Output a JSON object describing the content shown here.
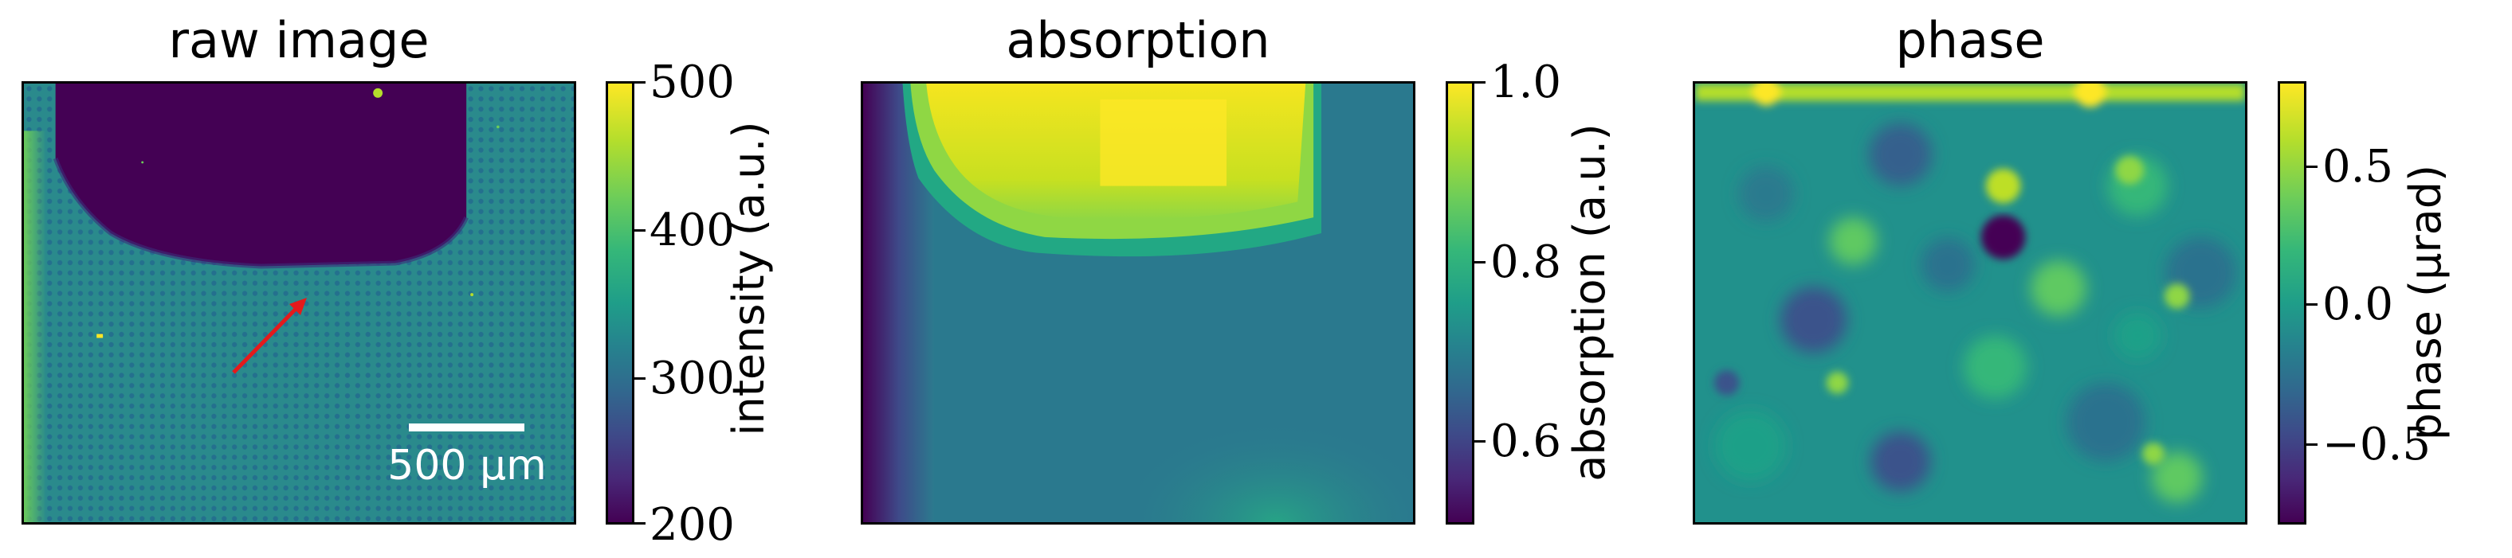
{
  "panels": [
    {
      "title": "raw image",
      "colorbar_label": "intensity (a.u.)",
      "colorbar_ticks": [
        "500",
        "400",
        "300",
        "200"
      ],
      "scalebar_label": "500 µm"
    },
    {
      "title": "absorption",
      "colorbar_label": "absorption (a.u.)",
      "colorbar_ticks": [
        "1.0",
        "0.8",
        "0.6"
      ]
    },
    {
      "title": "phase",
      "colorbar_label": "phase (µrad)",
      "colorbar_ticks": [
        "0.5",
        "0.0",
        "−0.5"
      ]
    }
  ],
  "colormap": [
    "#440154",
    "#3e4a89",
    "#26828e",
    "#35b779",
    "#fde725"
  ],
  "arrow_color": "#e41a1c",
  "scalebar_color": "#ffffff"
}
